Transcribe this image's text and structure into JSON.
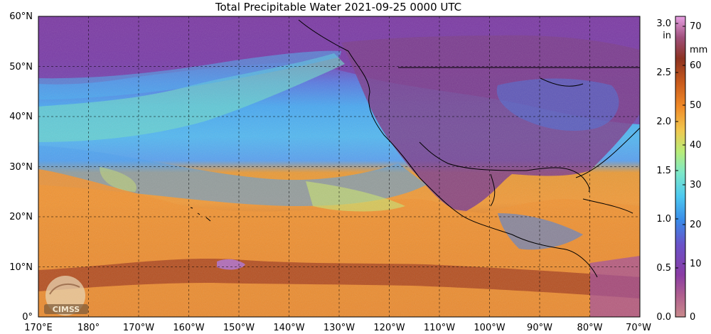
{
  "title": "Total Precipitable Water  2021-09-25 0000 UTC",
  "map": {
    "lat_ticks": [
      "60°N",
      "50°N",
      "40°N",
      "30°N",
      "20°N",
      "10°N",
      "0°"
    ],
    "lon_ticks": [
      "170°E",
      "180°",
      "170°W",
      "160°W",
      "150°W",
      "140°W",
      "130°W",
      "120°W",
      "110°W",
      "100°W",
      "90°W",
      "80°W",
      "70°W"
    ],
    "gridlines": true,
    "extent": {
      "lon_min": 170,
      "lon_max": 290,
      "lat_min": 0,
      "lat_max": 60
    }
  },
  "colorbar": {
    "left_unit": "in",
    "right_unit": "mm",
    "in_ticks": [
      "3.0",
      "2.5",
      "2.0",
      "1.5",
      "1.0",
      "0.5",
      "0.0"
    ],
    "mm_ticks": [
      "70",
      "60",
      "50",
      "40",
      "30",
      "20",
      "10",
      "0"
    ],
    "range_mm": [
      0,
      76
    ],
    "colors": [
      "#c77f85",
      "#9a3f9a",
      "#7d3ca8",
      "#3a7fe0",
      "#50c8f0",
      "#8ee6b0",
      "#e8d060",
      "#f2902a",
      "#d2601e",
      "#8e3420",
      "#b05a7e",
      "#e896e0"
    ]
  },
  "logo": {
    "text": "CIMSS"
  }
}
